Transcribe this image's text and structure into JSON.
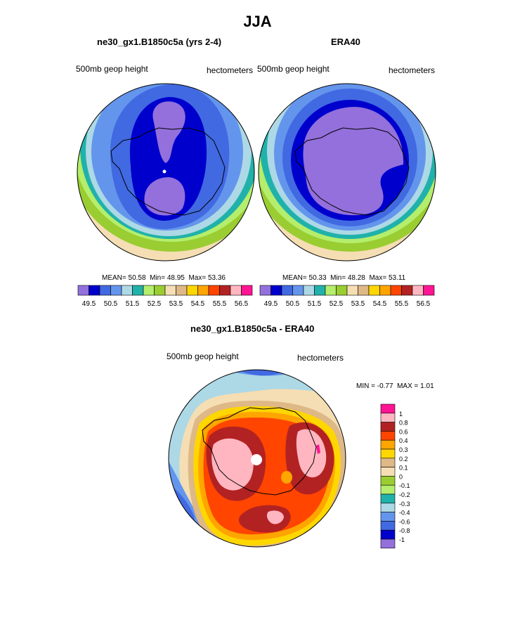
{
  "figure": {
    "title": "JJA"
  },
  "chart_data": [
    {
      "type": "heatmap",
      "title": "ne30_gx1.B1850c5a (yrs 2-4)",
      "left_label": "500mb geop height",
      "right_label": "hectometers",
      "stats": {
        "mean_label": "MEAN=",
        "mean": "50.58",
        "min_label": "Min=",
        "min": "48.95",
        "max_label": "Max=",
        "max": "53.36"
      },
      "levels": [
        "49.5",
        "50.5",
        "51.5",
        "52.5",
        "53.5",
        "54.5",
        "55.5",
        "56.5"
      ],
      "colors": [
        "#9370db",
        "#0000cd",
        "#4169e1",
        "#6495ed",
        "#add8e6",
        "#20b2aa",
        "#b4ee6c",
        "#9acd32",
        "#f5deb3",
        "#deb887",
        "#ffd700",
        "#ffa500",
        "#ff4500",
        "#b22222",
        "#ffb6c1",
        "#ff1493"
      ],
      "contour_levels_hm": [
        49.25,
        49.75,
        50.25,
        50.75,
        51.25,
        51.75,
        52.25,
        52.75,
        53.25
      ]
    },
    {
      "type": "heatmap",
      "title": "ERA40",
      "left_label": "500mb geop height",
      "right_label": "hectometers",
      "stats": {
        "mean_label": "MEAN=",
        "mean": "50.33",
        "min_label": "Min=",
        "min": "48.28",
        "max_label": "Max=",
        "max": "53.11"
      },
      "levels": [
        "49.5",
        "50.5",
        "51.5",
        "52.5",
        "53.5",
        "54.5",
        "55.5",
        "56.5"
      ],
      "colors": [
        "#9370db",
        "#0000cd",
        "#4169e1",
        "#6495ed",
        "#add8e6",
        "#20b2aa",
        "#b4ee6c",
        "#9acd32",
        "#f5deb3",
        "#deb887",
        "#ffd700",
        "#ffa500",
        "#ff4500",
        "#b22222",
        "#ffb6c1",
        "#ff1493"
      ]
    },
    {
      "type": "heatmap",
      "title": "ne30_gx1.B1850c5a - ERA40",
      "left_label": "500mb geop height",
      "right_label": "hectometers",
      "stats": {
        "min_label": "MIN =",
        "min": "-0.77",
        "max_label": "MAX =",
        "max": "1.01"
      },
      "legend_labels": [
        "1",
        "0.8",
        "0.6",
        "0.4",
        "0.3",
        "0.2",
        "0.1",
        "0",
        "-0.1",
        "-0.2",
        "-0.3",
        "-0.4",
        "-0.6",
        "-0.8",
        "-1"
      ],
      "colors": [
        "#ff1493",
        "#ffb6c1",
        "#b22222",
        "#ff4500",
        "#ffa500",
        "#ffd700",
        "#deb887",
        "#f5deb3",
        "#9acd32",
        "#b4ee6c",
        "#20b2aa",
        "#add8e6",
        "#6495ed",
        "#4169e1",
        "#0000cd",
        "#9370db"
      ]
    }
  ]
}
